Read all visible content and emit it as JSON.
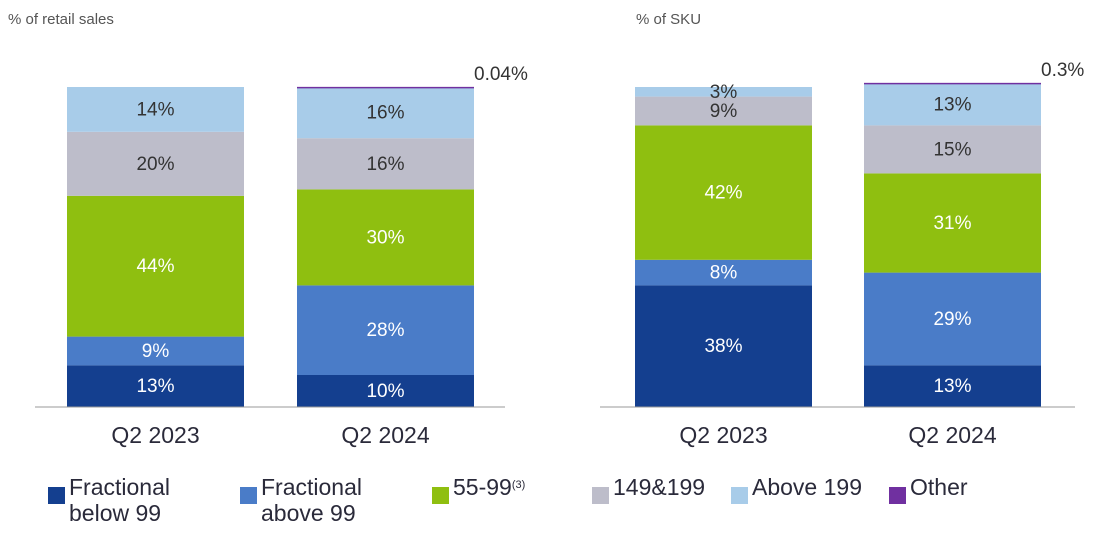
{
  "chart_data": [
    {
      "type": "stacked_bar",
      "y_label": "% of retail sales",
      "categories": [
        "Q2 2023",
        "Q2 2024"
      ],
      "ylim": [
        0,
        100
      ],
      "series": [
        {
          "values": [
            13,
            10
          ],
          "value_labels": [
            "13%",
            "10%"
          ]
        },
        {
          "values": [
            9,
            28
          ],
          "value_labels": [
            "9%",
            "28%"
          ]
        },
        {
          "values": [
            44,
            30
          ],
          "value_labels": [
            "44%",
            "30%"
          ]
        },
        {
          "values": [
            20,
            16
          ],
          "value_labels": [
            "20%",
            "16%"
          ]
        },
        {
          "values": [
            14,
            16
          ],
          "value_labels": [
            "14%",
            "16%"
          ]
        },
        {
          "values": [
            null,
            0.04
          ],
          "value_labels": [
            null,
            "0.04%"
          ]
        }
      ]
    },
    {
      "type": "stacked_bar",
      "y_label": "% of SKU",
      "categories": [
        "Q2 2023",
        "Q2 2024"
      ],
      "ylim": [
        0,
        100
      ],
      "series": [
        {
          "values": [
            38,
            13
          ],
          "value_labels": [
            "38%",
            "13%"
          ]
        },
        {
          "values": [
            8,
            29
          ],
          "value_labels": [
            "8%",
            "29%"
          ]
        },
        {
          "values": [
            42,
            31
          ],
          "value_labels": [
            "42%",
            "31%"
          ]
        },
        {
          "values": [
            9,
            15
          ],
          "value_labels": [
            "9%",
            "15%"
          ]
        },
        {
          "values": [
            3,
            13
          ],
          "value_labels": [
            "3%",
            "13%"
          ]
        },
        {
          "values": [
            null,
            0.3
          ],
          "value_labels": [
            null,
            "0.3%"
          ]
        }
      ]
    }
  ],
  "legend": [
    {
      "name": "Fractional below 99",
      "color": "#143f8f"
    },
    {
      "name": "Fractional above 99",
      "color": "#4a7cc8"
    },
    {
      "name": "55-99",
      "note": "(3)",
      "color": "#8fbf10"
    },
    {
      "name": "149&199",
      "color": "#bdbdca"
    },
    {
      "name": "Above 199",
      "color": "#a8cce9"
    },
    {
      "name": "Other",
      "color": "#7030a0"
    }
  ]
}
